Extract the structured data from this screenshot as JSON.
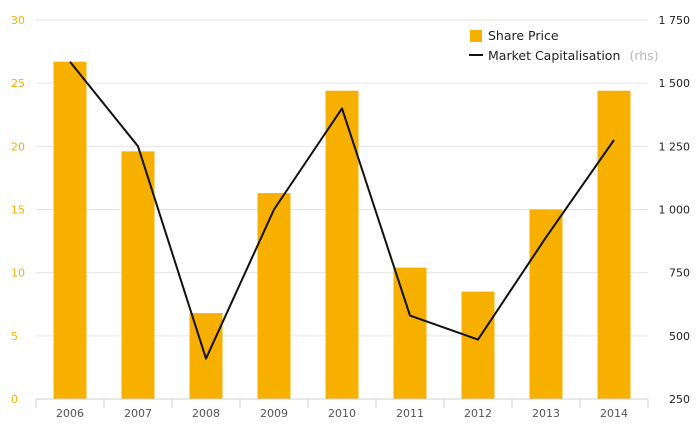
{
  "chart_data": {
    "type": "bar",
    "categories": [
      "2006",
      "2007",
      "2008",
      "2009",
      "2010",
      "2011",
      "2012",
      "2013",
      "2014"
    ],
    "series": [
      {
        "name": "Share Price",
        "type": "bar",
        "axis": "left",
        "color": "#f7b000",
        "values": [
          26.7,
          19.6,
          6.8,
          16.3,
          24.4,
          10.4,
          8.5,
          15.0,
          24.4
        ]
      },
      {
        "name": "Market Capitalisation",
        "name_suffix": "(rhs)",
        "type": "line",
        "axis": "right",
        "color": "#111111",
        "values": [
          1585,
          1250,
          410,
          1000,
          1400,
          580,
          485,
          890,
          1275
        ]
      }
    ],
    "y_left": {
      "lim": [
        0,
        30
      ],
      "ticks": [
        0,
        5,
        10,
        15,
        20,
        25,
        30
      ],
      "tick_labels": [
        "0",
        "5",
        "10",
        "15",
        "20",
        "25",
        "30"
      ],
      "color": "#f7b000"
    },
    "y_right": {
      "lim": [
        250,
        1750
      ],
      "ticks": [
        250,
        500,
        750,
        1000,
        1250,
        1500,
        1750
      ],
      "tick_labels": [
        "250",
        "500",
        "750",
        "1 000",
        "1 250",
        "1 500",
        "1 750"
      ],
      "color": "#222222"
    },
    "title": "",
    "xlabel": "",
    "ylabel": "",
    "grid": true,
    "legend": {
      "position": "top-right",
      "entries": [
        "Share Price",
        "Market Capitalisation"
      ]
    }
  }
}
